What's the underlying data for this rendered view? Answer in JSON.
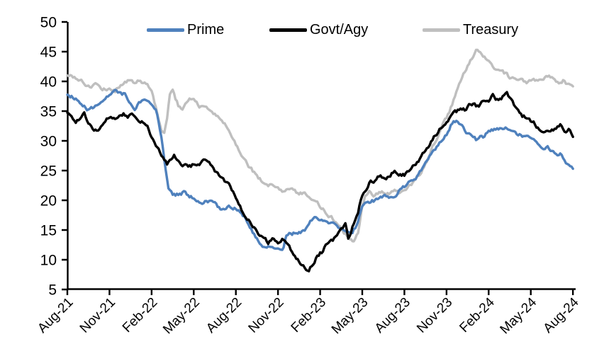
{
  "chart_data": {
    "type": "line",
    "title": "",
    "x_unit": "months since Aug-2021",
    "x_axis": {
      "categories": [
        "Aug-21",
        "Nov-21",
        "Feb-22",
        "May-22",
        "Aug-22",
        "Nov-22",
        "Feb-23",
        "May-23",
        "Aug-23",
        "Nov-23",
        "Feb-24",
        "May-24",
        "Aug-24"
      ],
      "tick_interval_months": 3,
      "range_months": [
        0,
        36
      ]
    },
    "y_axis": {
      "min": 5,
      "max": 50,
      "step": 5,
      "ticks": [
        "5",
        "10",
        "15",
        "20",
        "25",
        "30",
        "35",
        "40",
        "45",
        "50"
      ]
    },
    "grid": false,
    "legend_position": "top",
    "series": [
      {
        "name": "Treasury",
        "color": "#BFBFBF",
        "points": [
          [
            0,
            40.9
          ],
          [
            0.3,
            41.2
          ],
          [
            0.7,
            40.4
          ],
          [
            1,
            40.1
          ],
          [
            1.4,
            39.3
          ],
          [
            1.7,
            39
          ],
          [
            2,
            39.6
          ],
          [
            2.4,
            39
          ],
          [
            2.8,
            38.6
          ],
          [
            3.1,
            38.8
          ],
          [
            3.4,
            38.4
          ],
          [
            3.7,
            39.2
          ],
          [
            4.1,
            39.9
          ],
          [
            4.4,
            40.3
          ],
          [
            4.7,
            39.7
          ],
          [
            5,
            40.1
          ],
          [
            5.4,
            39.8
          ],
          [
            5.8,
            39.1
          ],
          [
            6.1,
            37.6
          ],
          [
            6.4,
            34.8
          ],
          [
            6.7,
            31.6
          ],
          [
            6.9,
            31.2
          ],
          [
            7.1,
            33.5
          ],
          [
            7.3,
            38
          ],
          [
            7.5,
            38.6
          ],
          [
            7.7,
            37.2
          ],
          [
            7.9,
            36
          ],
          [
            8.2,
            35.5
          ],
          [
            8.5,
            36.7
          ],
          [
            8.8,
            37.2
          ],
          [
            9.1,
            36.6
          ],
          [
            9.4,
            35.7
          ],
          [
            9.7,
            36.1
          ],
          [
            10,
            35.4
          ],
          [
            10.4,
            34.6
          ],
          [
            10.8,
            33.7
          ],
          [
            11.2,
            32.8
          ],
          [
            11.6,
            31.5
          ],
          [
            12,
            29.6
          ],
          [
            12.5,
            27.4
          ],
          [
            13,
            25.6
          ],
          [
            13.5,
            24.1
          ],
          [
            14,
            22.9
          ],
          [
            14.5,
            22.4
          ],
          [
            15,
            22.3
          ],
          [
            15.3,
            21.8
          ],
          [
            15.7,
            22.1
          ],
          [
            16.1,
            21.6
          ],
          [
            16.5,
            21.1
          ],
          [
            16.9,
            21.3
          ],
          [
            17.2,
            20.7
          ],
          [
            17.6,
            20.3
          ],
          [
            18,
            19
          ],
          [
            18.5,
            17.7
          ],
          [
            19,
            16.7
          ],
          [
            19.4,
            15.5
          ],
          [
            19.8,
            14.4
          ],
          [
            20.1,
            13.5
          ],
          [
            20.4,
            12.9
          ],
          [
            20.7,
            14.5
          ],
          [
            21,
            19.3
          ],
          [
            21.2,
            20.8
          ],
          [
            21.5,
            21.4
          ],
          [
            21.8,
            20.9
          ],
          [
            22.1,
            21.2
          ],
          [
            22.4,
            21.6
          ],
          [
            22.7,
            21.1
          ],
          [
            23,
            21.3
          ],
          [
            23.3,
            21.6
          ],
          [
            23.7,
            21.2
          ],
          [
            24,
            21.6
          ],
          [
            24.4,
            22.4
          ],
          [
            24.8,
            23.6
          ],
          [
            25.2,
            24.8
          ],
          [
            25.6,
            26.6
          ],
          [
            26,
            29
          ],
          [
            26.4,
            31
          ],
          [
            26.8,
            32.9
          ],
          [
            27.2,
            34.8
          ],
          [
            27.6,
            37.6
          ],
          [
            28,
            40.1
          ],
          [
            28.4,
            42
          ],
          [
            28.8,
            43.8
          ],
          [
            29.1,
            45.2
          ],
          [
            29.4,
            44.7
          ],
          [
            29.7,
            44.1
          ],
          [
            30,
            43.3
          ],
          [
            30.4,
            42.3
          ],
          [
            30.8,
            41.7
          ],
          [
            31.2,
            41.2
          ],
          [
            31.6,
            40.4
          ],
          [
            32,
            40.3
          ],
          [
            32.4,
            40
          ],
          [
            32.8,
            39.8
          ],
          [
            33.2,
            40.1
          ],
          [
            33.6,
            40
          ],
          [
            34,
            40.5
          ],
          [
            34.3,
            40.7
          ],
          [
            34.7,
            40.1
          ],
          [
            35,
            40
          ],
          [
            35.3,
            40.3
          ],
          [
            35.7,
            39.4
          ],
          [
            36,
            38.8
          ]
        ]
      },
      {
        "name": "Prime",
        "color": "#4F81BD",
        "points": [
          [
            0,
            38
          ],
          [
            0.4,
            37.4
          ],
          [
            0.8,
            36.9
          ],
          [
            1.2,
            36
          ],
          [
            1.5,
            35.2
          ],
          [
            1.8,
            35.6
          ],
          [
            2.2,
            36.4
          ],
          [
            2.6,
            36.8
          ],
          [
            3,
            37.6
          ],
          [
            3.4,
            38.1
          ],
          [
            3.8,
            38.3
          ],
          [
            4.2,
            37.6
          ],
          [
            4.5,
            36.3
          ],
          [
            4.8,
            35.5
          ],
          [
            5.2,
            36.6
          ],
          [
            5.5,
            37.3
          ],
          [
            5.8,
            37.1
          ],
          [
            6.1,
            36.2
          ],
          [
            6.4,
            34.6
          ],
          [
            6.7,
            30.6
          ],
          [
            7,
            25.2
          ],
          [
            7.2,
            22.4
          ],
          [
            7.5,
            21.2
          ],
          [
            7.8,
            21
          ],
          [
            8.1,
            21.1
          ],
          [
            8.4,
            21.7
          ],
          [
            8.7,
            20.7
          ],
          [
            9,
            20.2
          ],
          [
            9.4,
            19.5
          ],
          [
            9.8,
            19.9
          ],
          [
            10.2,
            19.6
          ],
          [
            10.6,
            19.1
          ],
          [
            11,
            18.4
          ],
          [
            11.4,
            19.1
          ],
          [
            11.8,
            18.9
          ],
          [
            12.2,
            18.6
          ],
          [
            12.6,
            17.2
          ],
          [
            13,
            15
          ],
          [
            13.4,
            13.8
          ],
          [
            13.8,
            12.6
          ],
          [
            14.2,
            12.1
          ],
          [
            14.6,
            11.9
          ],
          [
            15,
            12.2
          ],
          [
            15.4,
            12.1
          ],
          [
            15.6,
            14.3
          ],
          [
            16,
            14.3
          ],
          [
            16.4,
            14.5
          ],
          [
            16.8,
            14.9
          ],
          [
            17.1,
            15.4
          ],
          [
            17.3,
            16.6
          ],
          [
            17.7,
            16.9
          ],
          [
            18.1,
            16.7
          ],
          [
            18.5,
            16.5
          ],
          [
            18.9,
            15.9
          ],
          [
            19.3,
            15.5
          ],
          [
            19.7,
            14.8
          ],
          [
            20,
            14.4
          ],
          [
            20.3,
            14.3
          ],
          [
            20.6,
            15.8
          ],
          [
            21,
            18.8
          ],
          [
            21.4,
            19.6
          ],
          [
            21.8,
            19.9
          ],
          [
            22.2,
            20.3
          ],
          [
            22.6,
            20.7
          ],
          [
            23,
            20.4
          ],
          [
            23.4,
            21
          ],
          [
            23.8,
            21.9
          ],
          [
            24.2,
            22.6
          ],
          [
            24.6,
            23.3
          ],
          [
            25,
            24.1
          ],
          [
            25.5,
            26
          ],
          [
            26,
            28.1
          ],
          [
            26.5,
            29.6
          ],
          [
            27,
            31.2
          ],
          [
            27.4,
            33
          ],
          [
            27.7,
            33.4
          ],
          [
            28,
            32.5
          ],
          [
            28.4,
            31.5
          ],
          [
            28.8,
            30.6
          ],
          [
            29.1,
            30.2
          ],
          [
            29.4,
            30.7
          ],
          [
            29.7,
            30.4
          ],
          [
            30,
            31.6
          ],
          [
            30.4,
            32
          ],
          [
            30.8,
            32.2
          ],
          [
            31.2,
            32.4
          ],
          [
            31.5,
            32
          ],
          [
            31.9,
            31.4
          ],
          [
            32.3,
            31
          ],
          [
            32.7,
            30.5
          ],
          [
            33.1,
            30
          ],
          [
            33.5,
            29.6
          ],
          [
            33.9,
            28.8
          ],
          [
            34.2,
            29
          ],
          [
            34.5,
            28.2
          ],
          [
            34.9,
            27.2
          ],
          [
            35.2,
            27.6
          ],
          [
            35.5,
            26.5
          ],
          [
            35.8,
            26
          ],
          [
            36,
            25.4
          ]
        ]
      },
      {
        "name": "Govt/Agy",
        "color": "#000000",
        "points": [
          [
            0,
            34.8
          ],
          [
            0.3,
            34.3
          ],
          [
            0.6,
            33.4
          ],
          [
            0.9,
            33.9
          ],
          [
            1.2,
            34.4
          ],
          [
            1.5,
            33.2
          ],
          [
            1.9,
            31.5
          ],
          [
            2.2,
            31.6
          ],
          [
            2.5,
            32.6
          ],
          [
            2.8,
            33.8
          ],
          [
            3.1,
            34.3
          ],
          [
            3.4,
            33.6
          ],
          [
            3.7,
            34
          ],
          [
            4,
            34.6
          ],
          [
            4.3,
            33.7
          ],
          [
            4.6,
            34.4
          ],
          [
            4.9,
            33.8
          ],
          [
            5.3,
            33.2
          ],
          [
            5.7,
            32.4
          ],
          [
            6,
            30.4
          ],
          [
            6.4,
            28.8
          ],
          [
            6.8,
            27.2
          ],
          [
            7.1,
            26.2
          ],
          [
            7.4,
            26.8
          ],
          [
            7.6,
            27.9
          ],
          [
            7.9,
            26.7
          ],
          [
            8.2,
            25.7
          ],
          [
            8.5,
            26.2
          ],
          [
            8.8,
            25.8
          ],
          [
            9.1,
            26.1
          ],
          [
            9.4,
            25.7
          ],
          [
            9.7,
            27
          ],
          [
            10,
            26.9
          ],
          [
            10.4,
            25.5
          ],
          [
            10.8,
            24.1
          ],
          [
            11.2,
            23.3
          ],
          [
            11.6,
            22.4
          ],
          [
            12,
            20.5
          ],
          [
            12.5,
            18.1
          ],
          [
            13,
            16.3
          ],
          [
            13.5,
            14.7
          ],
          [
            14,
            13.4
          ],
          [
            14.3,
            12.9
          ],
          [
            14.6,
            13.4
          ],
          [
            15,
            12.9
          ],
          [
            15.3,
            13.5
          ],
          [
            15.7,
            12.5
          ],
          [
            16.1,
            11
          ],
          [
            16.5,
            9.8
          ],
          [
            16.9,
            8.6
          ],
          [
            17.2,
            8.3
          ],
          [
            17.5,
            9.5
          ],
          [
            17.8,
            10.7
          ],
          [
            18.1,
            11.3
          ],
          [
            18.4,
            12.4
          ],
          [
            18.8,
            13.1
          ],
          [
            19.2,
            13.9
          ],
          [
            19.5,
            14.9
          ],
          [
            19.8,
            15.8
          ],
          [
            20,
            13.6
          ],
          [
            20.3,
            15.5
          ],
          [
            20.7,
            18.2
          ],
          [
            21,
            21
          ],
          [
            21.3,
            22.1
          ],
          [
            21.6,
            23.3
          ],
          [
            22,
            23.2
          ],
          [
            22.3,
            24.4
          ],
          [
            22.6,
            23.7
          ],
          [
            23,
            24.1
          ],
          [
            23.3,
            25.1
          ],
          [
            23.6,
            23.9
          ],
          [
            24,
            24.2
          ],
          [
            24.5,
            25.5
          ],
          [
            25,
            26.6
          ],
          [
            25.5,
            28.3
          ],
          [
            26,
            30.3
          ],
          [
            26.5,
            31.9
          ],
          [
            27,
            33.1
          ],
          [
            27.5,
            34.4
          ],
          [
            28,
            35.4
          ],
          [
            28.3,
            35.1
          ],
          [
            28.6,
            35.9
          ],
          [
            29,
            36.2
          ],
          [
            29.3,
            35.7
          ],
          [
            29.6,
            36.5
          ],
          [
            30,
            36.9
          ],
          [
            30.3,
            37.7
          ],
          [
            30.6,
            36.9
          ],
          [
            31,
            37.4
          ],
          [
            31.3,
            37.9
          ],
          [
            31.7,
            36.4
          ],
          [
            32.1,
            35.2
          ],
          [
            32.4,
            34.3
          ],
          [
            32.8,
            33.8
          ],
          [
            33.2,
            33
          ],
          [
            33.6,
            31.9
          ],
          [
            34,
            31.4
          ],
          [
            34.4,
            31.2
          ],
          [
            34.8,
            32.1
          ],
          [
            35.1,
            32.5
          ],
          [
            35.4,
            31.7
          ],
          [
            35.7,
            31.9
          ],
          [
            36,
            30.5
          ]
        ]
      }
    ],
    "legend": {
      "items": [
        {
          "label": "Prime",
          "color": "#4F81BD"
        },
        {
          "label": "Govt/Agy",
          "color": "#000000"
        },
        {
          "label": "Treasury",
          "color": "#BFBFBF"
        }
      ]
    }
  }
}
